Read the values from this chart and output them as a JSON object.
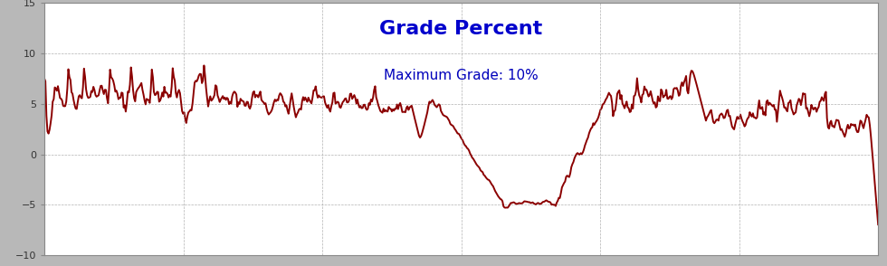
{
  "title": "Grade Percent",
  "subtitle": "Maximum Grade: 10%",
  "title_color": "#0000CC",
  "subtitle_color": "#0000BB",
  "line_color": "#8B0000",
  "bg_color": "#B8B8B8",
  "plot_bg_color": "#FFFFFF",
  "ylim": [
    -10,
    15
  ],
  "yticks": [
    -10,
    -5,
    0,
    5,
    10,
    15
  ],
  "grid_color": "#AAAAAA",
  "title_fontsize": 16,
  "subtitle_fontsize": 11,
  "line_width": 1.4,
  "figsize": [
    9.8,
    2.94
  ],
  "dpi": 100
}
